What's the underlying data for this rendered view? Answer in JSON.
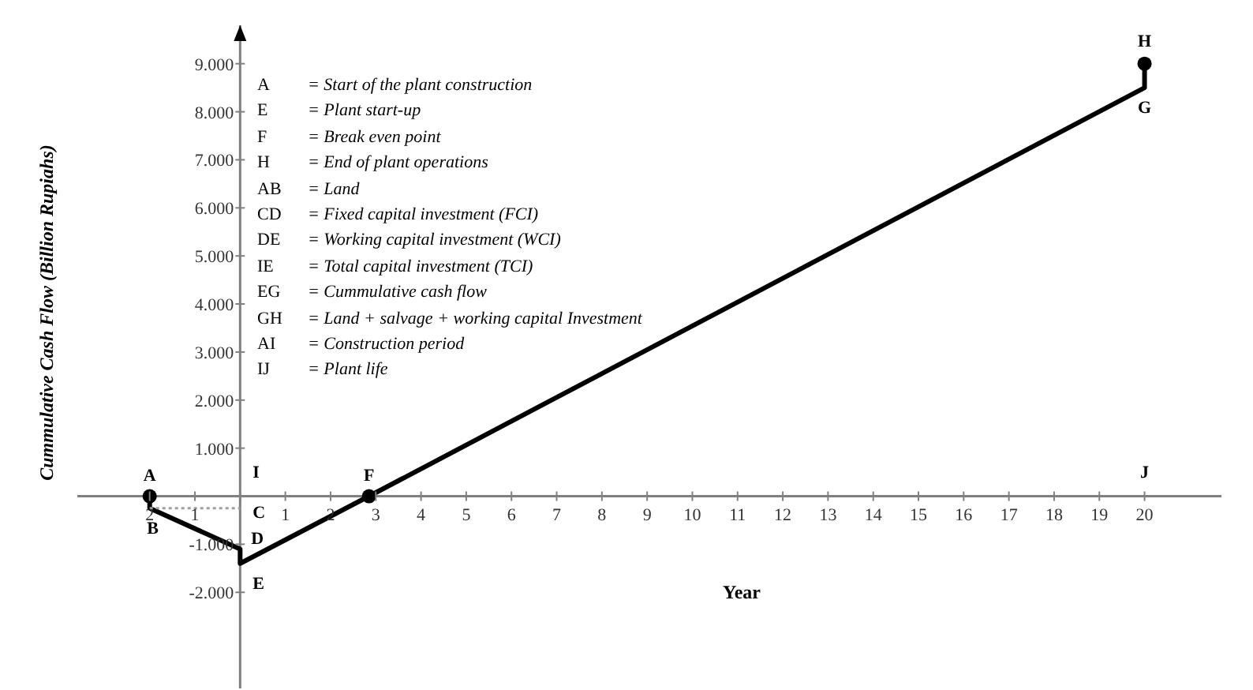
{
  "chart_data": {
    "type": "line",
    "xlabel": "Year",
    "ylabel": "Cummulative Cash Flow (Billion Rupiahs)",
    "xlim": [
      -3.6,
      21.7
    ],
    "ylim": [
      -4000,
      9800
    ],
    "xticks": [
      {
        "value": -2,
        "label": "2"
      },
      {
        "value": -1,
        "label": "1"
      },
      {
        "value": 0,
        "label": null
      },
      1,
      2,
      3,
      4,
      5,
      6,
      7,
      8,
      9,
      10,
      11,
      12,
      13,
      14,
      15,
      16,
      17,
      18,
      19,
      20
    ],
    "yticks": [
      {
        "value": -2000,
        "label": "-2.000"
      },
      {
        "value": -1000,
        "label": "-1.000"
      },
      {
        "value": 1000,
        "label": "1.000"
      },
      {
        "value": 2000,
        "label": "2.000"
      },
      {
        "value": 3000,
        "label": "3.000"
      },
      {
        "value": 4000,
        "label": "4.000"
      },
      {
        "value": 5000,
        "label": "5.000"
      },
      {
        "value": 6000,
        "label": "6.000"
      },
      {
        "value": 7000,
        "label": "7.000"
      },
      {
        "value": 8000,
        "label": "8.000"
      },
      {
        "value": 9000,
        "label": "9.000"
      }
    ],
    "series": [
      {
        "color": "#000000",
        "marker": "none",
        "line_style": "solid",
        "x": [
          -2,
          -2,
          0,
          0,
          2.85,
          20,
          20
        ],
        "values": [
          0,
          -250,
          -1100,
          -1400,
          0,
          8500,
          9000
        ]
      },
      {
        "color": "#a0a0a0",
        "marker": "none",
        "line_style": "dotted",
        "x": [
          -2,
          0
        ],
        "values": [
          -250,
          -250
        ]
      },
      {
        "type": "scatter",
        "color": "#000000",
        "marker": "circle",
        "x": [
          -2,
          2.85,
          20
        ],
        "values": [
          0,
          0,
          9000
        ]
      }
    ],
    "annotations": [
      {
        "text": "A",
        "x": -2,
        "y": 0
      },
      {
        "text": "B",
        "x": -2,
        "y": -250
      },
      {
        "text": "C",
        "x": 0,
        "y": -250
      },
      {
        "text": "D",
        "x": 0,
        "y": -1100
      },
      {
        "text": "E",
        "x": 0,
        "y": -1400
      },
      {
        "text": "F",
        "x": 2.85,
        "y": 0
      },
      {
        "text": "G",
        "x": 20,
        "y": 8500
      },
      {
        "text": "H",
        "x": 20,
        "y": 9000
      },
      "I",
      "J",
      "A = Start of the plant construction",
      "E = Plant start-up",
      "F = Break even point",
      "H = End of plant operations",
      "AB = Land",
      "CD = Fixed capital investment (FCI)",
      "DE = Working capital investment (WCI)",
      "IE = Total capital investment (TCI)",
      "EG = Cummulative cash flow",
      "GH = Land + salvage + working capital Investment",
      "AI = Construction period",
      "IJ = Plant life"
    ]
  }
}
